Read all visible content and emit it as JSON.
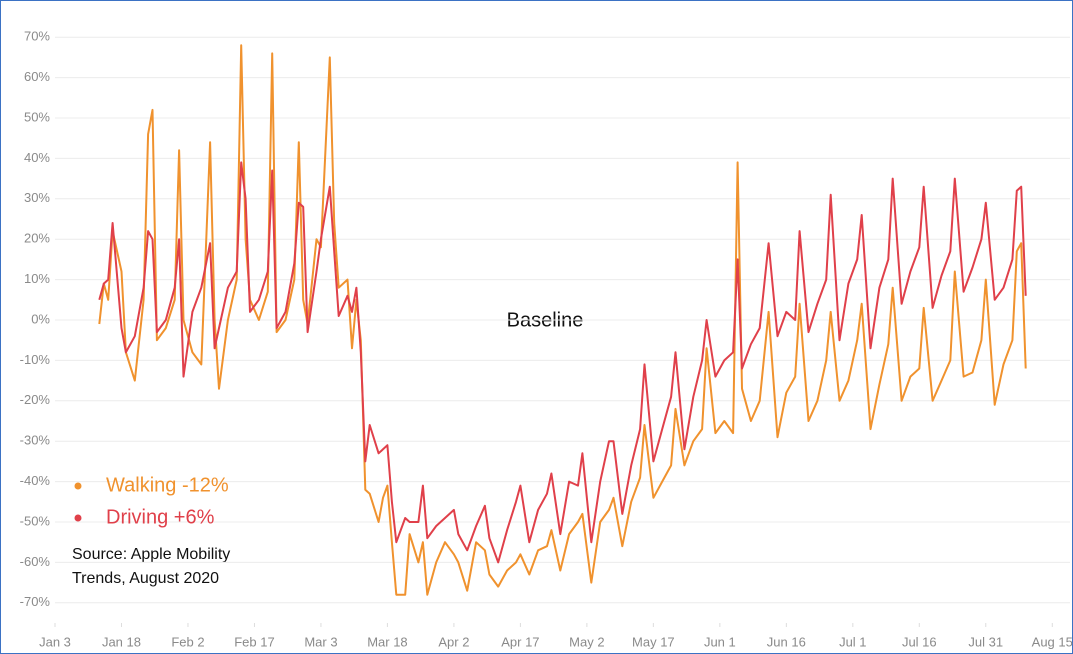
{
  "chart_data": {
    "type": "line",
    "annotation": "Baseline",
    "source_lines": [
      "Source: Apple Mobility",
      "Trends, August 2020"
    ],
    "xlim": [
      "Jan 3",
      "Aug 19"
    ],
    "xticks": [
      "Jan 3",
      "Jan 18",
      "Feb 2",
      "Feb 17",
      "Mar 3",
      "Mar 18",
      "Apr 2",
      "Apr 17",
      "May 2",
      "May 17",
      "Jun 1",
      "Jun 16",
      "Jul 1",
      "Jul 16",
      "Jul 31",
      "Aug 15"
    ],
    "ylim": [
      -75,
      75
    ],
    "yticks": [
      {
        "value": 70,
        "label": "70%"
      },
      {
        "value": 60,
        "label": "60%"
      },
      {
        "value": 50,
        "label": "50%"
      },
      {
        "value": 40,
        "label": "40%"
      },
      {
        "value": 30,
        "label": "30%"
      },
      {
        "value": 20,
        "label": "20%"
      },
      {
        "value": 10,
        "label": "10%"
      },
      {
        "value": 0,
        "label": "0%"
      },
      {
        "value": -10,
        "label": "-10%"
      },
      {
        "value": -20,
        "label": "-20%"
      },
      {
        "value": -30,
        "label": "-30%"
      },
      {
        "value": -40,
        "label": "-40%"
      },
      {
        "value": -50,
        "label": "-50%"
      },
      {
        "value": -60,
        "label": "-60%"
      },
      {
        "value": -70,
        "label": "-70%"
      }
    ],
    "grid": true,
    "x": [
      "Jan 13",
      "Jan 14",
      "Jan 15",
      "Jan 16",
      "Jan 18",
      "Jan 19",
      "Jan 21",
      "Jan 23",
      "Jan 24",
      "Jan 25",
      "Jan 26",
      "Jan 28",
      "Jan 30",
      "Jan 31",
      "Feb 1",
      "Feb 3",
      "Feb 5",
      "Feb 7",
      "Feb 8",
      "Feb 9",
      "Feb 11",
      "Feb 13",
      "Feb 14",
      "Feb 15",
      "Feb 16",
      "Feb 18",
      "Feb 20",
      "Feb 21",
      "Feb 22",
      "Feb 24",
      "Feb 26",
      "Feb 27",
      "Feb 28",
      "Feb 29",
      "Mar 2",
      "Mar 3",
      "Mar 5",
      "Mar 6",
      "Mar 7",
      "Mar 9",
      "Mar 10",
      "Mar 11",
      "Mar 12",
      "Mar 13",
      "Mar 14",
      "Mar 16",
      "Mar 17",
      "Mar 18",
      "Mar 19",
      "Mar 20",
      "Mar 22",
      "Mar 23",
      "Mar 25",
      "Mar 26",
      "Mar 27",
      "Mar 29",
      "Mar 31",
      "Apr 2",
      "Apr 3",
      "Apr 5",
      "Apr 7",
      "Apr 9",
      "Apr 10",
      "Apr 12",
      "Apr 14",
      "Apr 16",
      "Apr 17",
      "Apr 19",
      "Apr 21",
      "Apr 23",
      "Apr 24",
      "Apr 26",
      "Apr 28",
      "Apr 30",
      "May 1",
      "May 3",
      "May 5",
      "May 7",
      "May 8",
      "May 10",
      "May 12",
      "May 14",
      "May 15",
      "May 17",
      "May 19",
      "May 21",
      "May 22",
      "May 24",
      "May 26",
      "May 28",
      "May 29",
      "May 31",
      "Jun 2",
      "Jun 4",
      "Jun 5",
      "Jun 6",
      "Jun 8",
      "Jun 10",
      "Jun 12",
      "Jun 14",
      "Jun 16",
      "Jun 18",
      "Jun 19",
      "Jun 21",
      "Jun 23",
      "Jun 25",
      "Jun 26",
      "Jun 28",
      "Jun 30",
      "Jul 2",
      "Jul 3",
      "Jul 5",
      "Jul 7",
      "Jul 9",
      "Jul 10",
      "Jul 12",
      "Jul 14",
      "Jul 16",
      "Jul 17",
      "Jul 19",
      "Jul 21",
      "Jul 23",
      "Jul 24",
      "Jul 26",
      "Jul 28",
      "Jul 30",
      "Jul 31",
      "Aug 2",
      "Aug 4",
      "Aug 6",
      "Aug 7",
      "Aug 8",
      "Aug 9"
    ],
    "series": [
      {
        "name": "Walking -12%",
        "color": "#f0922e",
        "values": [
          -1,
          9,
          5,
          22,
          12,
          -8,
          -15,
          5,
          46,
          52,
          -5,
          -2,
          5,
          42,
          0,
          -8,
          -11,
          44,
          0,
          -17,
          0,
          10,
          68,
          20,
          5,
          0,
          7,
          66,
          -3,
          0,
          10,
          44,
          5,
          -1,
          20,
          18,
          65,
          24,
          8,
          10,
          -7,
          5,
          -5,
          -42,
          -43,
          -50,
          -44,
          -41,
          -55,
          -68,
          -68,
          -53,
          -60,
          -55,
          -68,
          -60,
          -55,
          -58,
          -60,
          -67,
          -55,
          -57,
          -63,
          -66,
          -62,
          -60,
          -58,
          -63,
          -57,
          -56,
          -52,
          -62,
          -53,
          -50,
          -48,
          -65,
          -50,
          -47,
          -44,
          -56,
          -45,
          -39,
          -26,
          -44,
          -40,
          -36,
          -22,
          -36,
          -30,
          -27,
          -7,
          -28,
          -25,
          -28,
          39,
          -17,
          -25,
          -20,
          2,
          -29,
          -18,
          -14,
          4,
          -25,
          -20,
          -10,
          2,
          -20,
          -15,
          -5,
          4,
          -27,
          -16,
          -6,
          8,
          -20,
          -14,
          -12,
          3,
          -20,
          -15,
          -10,
          12,
          -14,
          -13,
          -5,
          10,
          -21,
          -11,
          -5,
          17,
          19,
          -12
        ]
      },
      {
        "name": "Driving +6%",
        "color": "#e0404a",
        "values": [
          5,
          9,
          10,
          24,
          -2,
          -8,
          -4,
          8,
          22,
          20,
          -3,
          0,
          8,
          20,
          -14,
          2,
          8,
          19,
          -7,
          -2,
          8,
          12,
          39,
          30,
          2,
          5,
          12,
          37,
          -2,
          2,
          14,
          29,
          28,
          -3,
          12,
          20,
          33,
          17,
          1,
          6,
          2,
          8,
          -8,
          -35,
          -26,
          -33,
          -32,
          -31,
          -45,
          -55,
          -49,
          -50,
          -50,
          -41,
          -54,
          -51,
          -49,
          -47,
          -53,
          -57,
          -51,
          -46,
          -54,
          -60,
          -52,
          -45,
          -41,
          -55,
          -47,
          -43,
          -38,
          -53,
          -40,
          -41,
          -33,
          -55,
          -40,
          -30,
          -30,
          -48,
          -36,
          -27,
          -11,
          -35,
          -27,
          -19,
          -8,
          -32,
          -19,
          -10,
          0,
          -14,
          -10,
          -8,
          15,
          -12,
          -6,
          -2,
          19,
          -4,
          2,
          0,
          22,
          -3,
          4,
          10,
          31,
          -5,
          9,
          15,
          26,
          -7,
          8,
          15,
          35,
          4,
          12,
          18,
          33,
          3,
          11,
          17,
          35,
          7,
          13,
          20,
          29,
          5,
          8,
          15,
          32,
          33,
          6
        ]
      }
    ]
  }
}
